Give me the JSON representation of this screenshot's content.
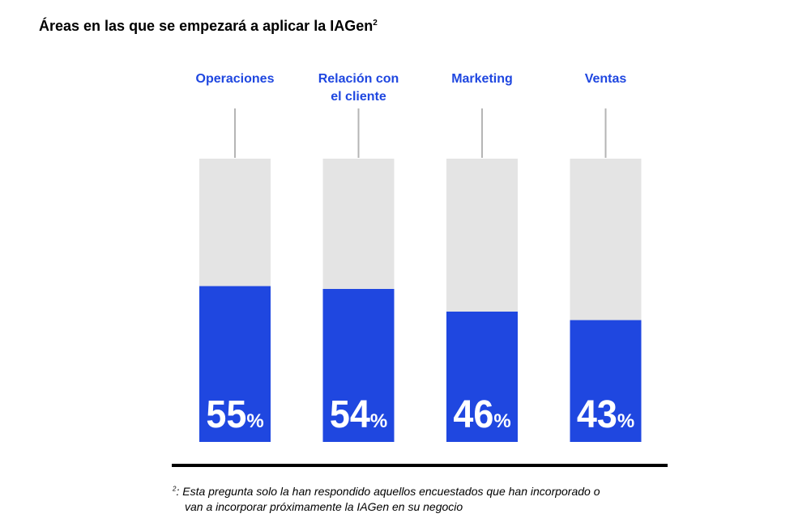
{
  "title": {
    "text": "Áreas en las que se empezará a aplicar la IAGen",
    "superscript": "2"
  },
  "colors": {
    "accent": "#1f47e0",
    "track": "#e4e4e4",
    "stem": "#b5b5b5",
    "text": "#000000",
    "value_text": "#ffffff"
  },
  "chart_data": {
    "type": "bar",
    "categories": [
      [
        "Operaciones"
      ],
      [
        "Relación con",
        "el cliente"
      ],
      [
        "Marketing"
      ],
      [
        "Ventas"
      ]
    ],
    "values": [
      55,
      54,
      46,
      43
    ],
    "value_suffix": "%",
    "ylim": [
      0,
      100
    ],
    "grid": false,
    "legend": "none"
  },
  "footnote": {
    "mark": "2",
    "line1": ": Esta pregunta solo la han respondido aquellos encuestados que han incorporado o",
    "line2": "van a incorporar próximamente la IAGen en su negocio"
  }
}
